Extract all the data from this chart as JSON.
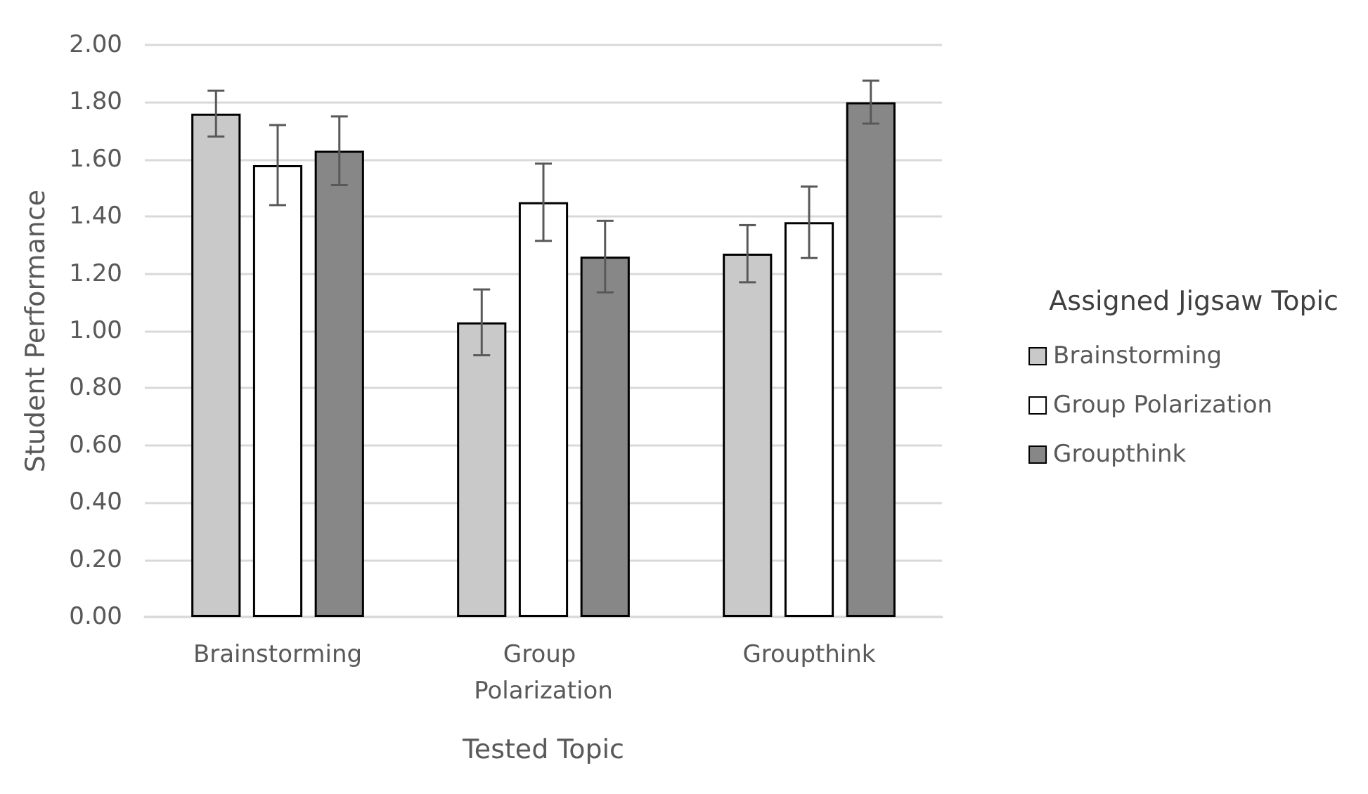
{
  "chart_data": {
    "type": "bar",
    "xlabel": "Tested Topic",
    "ylabel": "Student Performance",
    "legend_title": "Assigned Jigsaw Topic",
    "categories": [
      "Brainstorming",
      "Group Polarization",
      "Groupthink"
    ],
    "series": [
      {
        "name": "Brainstorming",
        "color": "#c9c9c9",
        "values": [
          1.76,
          1.03,
          1.27
        ],
        "errors": [
          0.08,
          0.115,
          0.1
        ]
      },
      {
        "name": "Group Polarization",
        "color": "#ffffff",
        "values": [
          1.58,
          1.45,
          1.38
        ],
        "errors": [
          0.14,
          0.135,
          0.125
        ]
      },
      {
        "name": "Groupthink",
        "color": "#878787",
        "values": [
          1.63,
          1.26,
          1.8
        ],
        "errors": [
          0.12,
          0.125,
          0.075
        ]
      }
    ],
    "ylim": [
      0,
      2
    ],
    "yticks": [
      {
        "value": 0,
        "label": "0.00"
      },
      {
        "value": 0.2,
        "label": "0.20"
      },
      {
        "value": 0.4,
        "label": "0.40"
      },
      {
        "value": 0.6,
        "label": "0.60"
      },
      {
        "value": 0.8,
        "label": "0.80"
      },
      {
        "value": 1,
        "label": "1.00"
      },
      {
        "value": 1.2,
        "label": "1.20"
      },
      {
        "value": 1.4,
        "label": "1.40"
      },
      {
        "value": 1.6,
        "label": "1.60"
      },
      {
        "value": 1.8,
        "label": "1.80"
      },
      {
        "value": 2,
        "label": "2.00"
      }
    ],
    "grid": "y",
    "legend": "right"
  }
}
